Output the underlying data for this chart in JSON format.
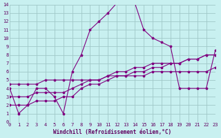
{
  "bg_color": "#c8f0f0",
  "grid_color": "#a0c8c8",
  "line_color": "#800080",
  "xlim": [
    0,
    23
  ],
  "ylim": [
    0,
    14
  ],
  "xticks": [
    0,
    1,
    2,
    3,
    4,
    5,
    6,
    7,
    8,
    9,
    10,
    11,
    12,
    13,
    14,
    15,
    16,
    17,
    18,
    19,
    20,
    21,
    22,
    23
  ],
  "yticks": [
    0,
    1,
    2,
    3,
    4,
    5,
    6,
    7,
    8,
    9,
    10,
    11,
    12,
    13,
    14
  ],
  "xlabel": "Windchill (Refroidissement éolien,°C)",
  "line1_x": [
    0,
    1,
    2,
    3,
    4,
    5,
    6,
    7,
    8,
    9,
    10,
    11,
    12,
    13,
    14,
    15,
    16,
    17,
    18,
    19,
    20,
    21,
    22,
    23
  ],
  "line1_y": [
    4,
    1,
    2,
    4,
    4,
    3,
    1,
    6,
    8,
    11,
    12,
    13,
    14.2,
    14.2,
    14.2,
    11,
    10,
    9.5,
    9,
    4,
    4,
    4,
    4,
    8.5
  ],
  "line2_x": [
    0,
    1,
    2,
    3,
    4,
    5,
    6,
    7,
    8,
    9,
    10,
    11,
    12,
    13,
    14,
    15,
    16,
    17,
    18,
    19,
    20,
    21,
    22,
    23
  ],
  "line2_y": [
    2,
    2,
    2,
    2.5,
    2.5,
    2.5,
    3,
    3,
    4,
    4.5,
    4.5,
    5,
    5.5,
    5.5,
    6,
    6,
    6.5,
    6.5,
    7,
    7,
    7.5,
    7.5,
    8,
    8
  ],
  "line3_x": [
    0,
    1,
    2,
    3,
    4,
    5,
    6,
    7,
    8,
    9,
    10,
    11,
    12,
    13,
    14,
    15,
    16,
    17,
    18,
    19,
    20,
    21,
    22,
    23
  ],
  "line3_y": [
    3,
    3,
    3,
    3.5,
    3.5,
    3.5,
    3.5,
    4,
    4.5,
    5,
    5,
    5.5,
    6,
    6,
    6.5,
    6.5,
    7,
    7,
    7,
    7,
    7.5,
    7.5,
    8,
    8
  ],
  "line4_x": [
    0,
    1,
    2,
    3,
    4,
    5,
    6,
    7,
    8,
    9,
    10,
    11,
    12,
    13,
    14,
    15,
    16,
    17,
    18,
    19,
    20,
    21,
    22,
    23
  ],
  "line4_y": [
    4.5,
    4.5,
    4.5,
    4.5,
    5,
    5,
    5,
    5,
    5,
    5,
    5,
    5.5,
    5.5,
    5.5,
    5.5,
    5.5,
    6,
    6,
    6,
    6,
    6,
    6,
    6,
    6.5
  ]
}
